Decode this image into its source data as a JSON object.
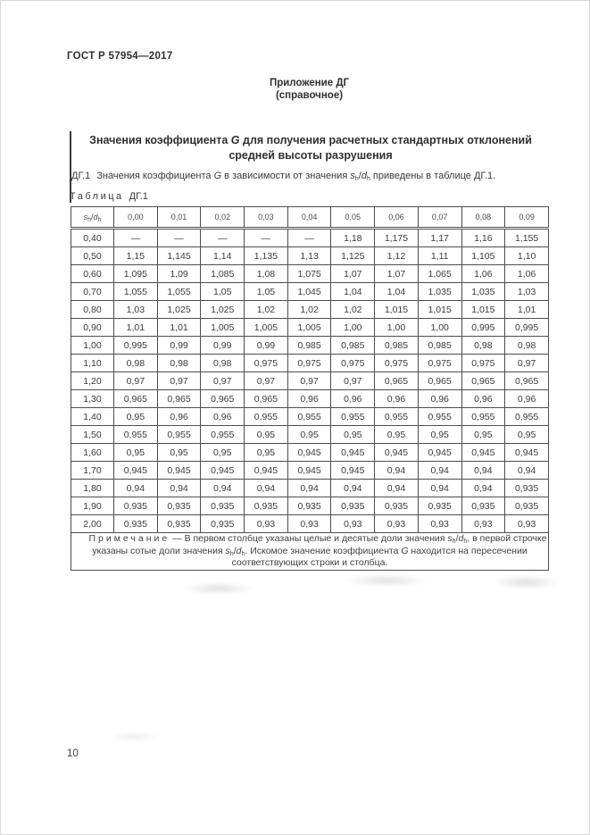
{
  "page": {
    "standard": "ГОСТ Р 57954—2017",
    "number": "10"
  },
  "annex": {
    "line1": "Приложение ДГ",
    "line2": "(справочное)"
  },
  "title": {
    "part1": "Значения коэффициента ",
    "g": "G",
    "part2": " для получения расчетных стандартных отклонений",
    "line2": "средней высоты разрушения"
  },
  "intro": {
    "num": "ДГ.1",
    "part1": "Значения коэффициента ",
    "g": "G",
    "part2": " в зависимости от значения ",
    "formula": "s_h/d_h",
    "part3": " приведены в таблице ДГ.1."
  },
  "table": {
    "label_word": "Таблица",
    "label_number": "ДГ.1",
    "header_formula": "s_h/d_h",
    "col_headers": [
      "0,00",
      "0,01",
      "0,02",
      "0,03",
      "0,04",
      "0,05",
      "0,06",
      "0,07",
      "0,08",
      "0,09"
    ],
    "rows": [
      [
        "0,40",
        "—",
        "—",
        "—",
        "—",
        "—",
        "1,18",
        "1,175",
        "1,17",
        "1,16",
        "1,155"
      ],
      [
        "0,50",
        "1,15",
        "1,145",
        "1,14",
        "1,135",
        "1,13",
        "1,125",
        "1,12",
        "1,11",
        "1,105",
        "1,10"
      ],
      [
        "0,60",
        "1,095",
        "1,09",
        "1,085",
        "1,08",
        "1,075",
        "1,07",
        "1,07",
        "1,065",
        "1,06",
        "1,06"
      ],
      [
        "0,70",
        "1,055",
        "1,055",
        "1,05",
        "1,05",
        "1,045",
        "1,04",
        "1,04",
        "1,035",
        "1,035",
        "1,03"
      ],
      [
        "0,80",
        "1,03",
        "1,025",
        "1,025",
        "1,02",
        "1,02",
        "1,02",
        "1,015",
        "1,015",
        "1,015",
        "1,01"
      ],
      [
        "0,90",
        "1,01",
        "1,01",
        "1,005",
        "1,005",
        "1,005",
        "1,00",
        "1,00",
        "1,00",
        "0,995",
        "0,995"
      ],
      [
        "1,00",
        "0,995",
        "0,99",
        "0,99",
        "0,99",
        "0,985",
        "0,985",
        "0,985",
        "0,985",
        "0,98",
        "0,98"
      ],
      [
        "1,10",
        "0,98",
        "0,98",
        "0,98",
        "0,975",
        "0,975",
        "0,975",
        "0,975",
        "0,975",
        "0,975",
        "0,97"
      ],
      [
        "1,20",
        "0,97",
        "0,97",
        "0,97",
        "0,97",
        "0,97",
        "0,97",
        "0,965",
        "0,965",
        "0,965",
        "0,965"
      ],
      [
        "1,30",
        "0,965",
        "0,965",
        "0,965",
        "0,965",
        "0,96",
        "0,96",
        "0,96",
        "0,96",
        "0,96",
        "0,96"
      ],
      [
        "1,40",
        "0,95",
        "0,96",
        "0,96",
        "0,955",
        "0,955",
        "0,955",
        "0,955",
        "0,955",
        "0,955",
        "0,955"
      ],
      [
        "1,50",
        "0,955",
        "0,955",
        "0,955",
        "0,95",
        "0,95",
        "0,95",
        "0,95",
        "0,95",
        "0,95",
        "0,95"
      ],
      [
        "1,60",
        "0,95",
        "0,95",
        "0,95",
        "0,95",
        "0,945",
        "0,945",
        "0,945",
        "0,945",
        "0,945",
        "0,945"
      ],
      [
        "1,70",
        "0,945",
        "0,945",
        "0,945",
        "0,945",
        "0,945",
        "0,945",
        "0,94",
        "0,94",
        "0,94",
        "0,94"
      ],
      [
        "1,80",
        "0,94",
        "0,94",
        "0,94",
        "0,94",
        "0,94",
        "0,94",
        "0,94",
        "0,94",
        "0,94",
        "0,935"
      ],
      [
        "1,90",
        "0,935",
        "0,935",
        "0,935",
        "0,935",
        "0,935",
        "0,935",
        "0,935",
        "0,935",
        "0,935",
        "0,935"
      ],
      [
        "2,00",
        "0,935",
        "0,935",
        "0,935",
        "0,93",
        "0,93",
        "0,93",
        "0,93",
        "0,93",
        "0,93",
        "0,93"
      ]
    ]
  },
  "note": {
    "label": "Примечание",
    "dash": " — ",
    "part1": "В первом столбце указаны целые и десятые доли значения ",
    "formula1": "s_h/d_h",
    "part2": ", в первой строчке указаны сотые доли значения ",
    "formula2": "s_h/d_h",
    "part3": ". Искомое значение коэффициента ",
    "g": "G",
    "part4": " находится на пересечении соответствующих строки и столбца."
  }
}
